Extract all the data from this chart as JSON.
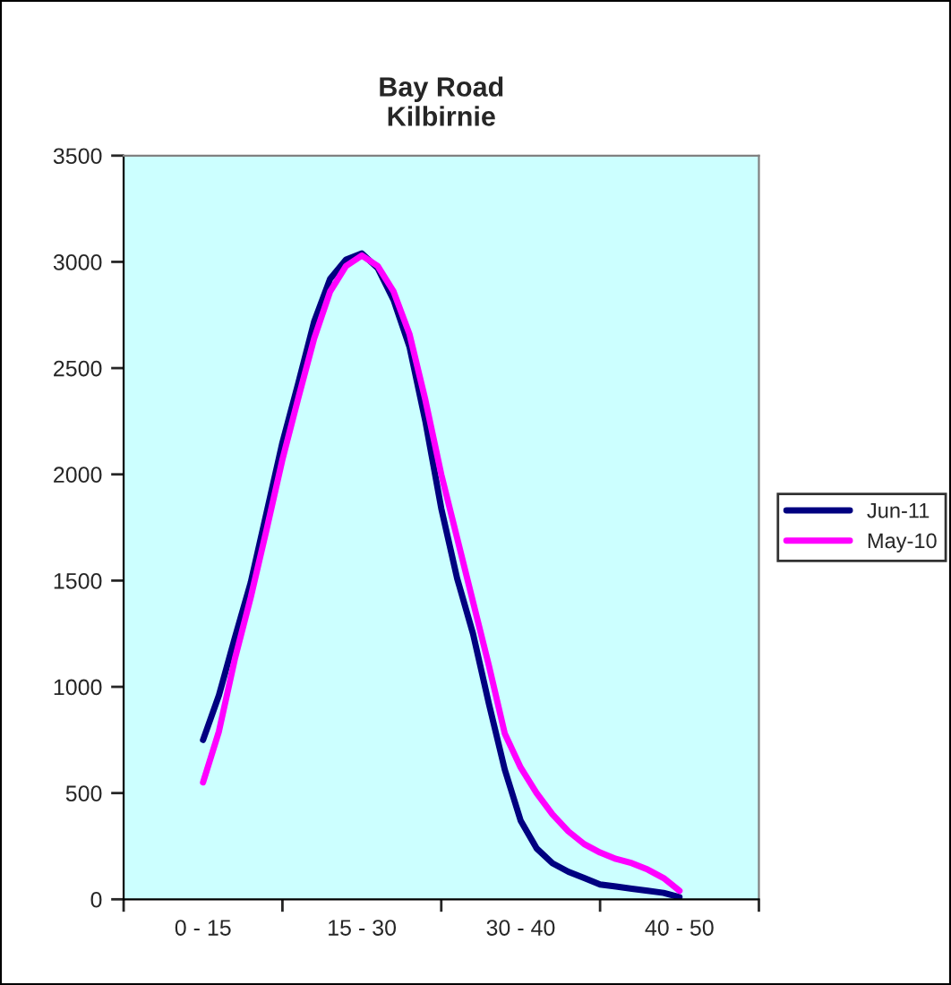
{
  "chart_data": {
    "type": "line",
    "title": "Bay Road\nKilbirnie",
    "categories": [
      "0 - 15",
      null,
      null,
      null,
      null,
      null,
      null,
      null,
      null,
      null,
      "15 - 30",
      null,
      null,
      null,
      null,
      null,
      null,
      null,
      null,
      null,
      "30 - 40",
      null,
      null,
      null,
      null,
      null,
      null,
      null,
      null,
      null,
      "40 - 50"
    ],
    "ylim": [
      0,
      3500
    ],
    "yticks": [
      0,
      500,
      1000,
      1500,
      2000,
      2500,
      3000,
      3500
    ],
    "legend": "right",
    "line_style": "solid",
    "series": [
      {
        "name": "Jun-11",
        "color": "#000080",
        "values": [
          750,
          960,
          1230,
          1490,
          1820,
          2150,
          2430,
          2720,
          2920,
          3010,
          3040,
          2970,
          2820,
          2600,
          2250,
          1840,
          1510,
          1250,
          920,
          610,
          370,
          240,
          170,
          130,
          100,
          70,
          60,
          50,
          40,
          30,
          10
        ]
      },
      {
        "name": "May-10",
        "color": "#ff00ff",
        "values": [
          550,
          790,
          1130,
          1420,
          1740,
          2070,
          2360,
          2640,
          2860,
          2980,
          3030,
          2980,
          2860,
          2660,
          2350,
          2000,
          1700,
          1400,
          1100,
          780,
          620,
          500,
          400,
          320,
          260,
          220,
          190,
          170,
          140,
          100,
          40
        ]
      }
    ]
  }
}
